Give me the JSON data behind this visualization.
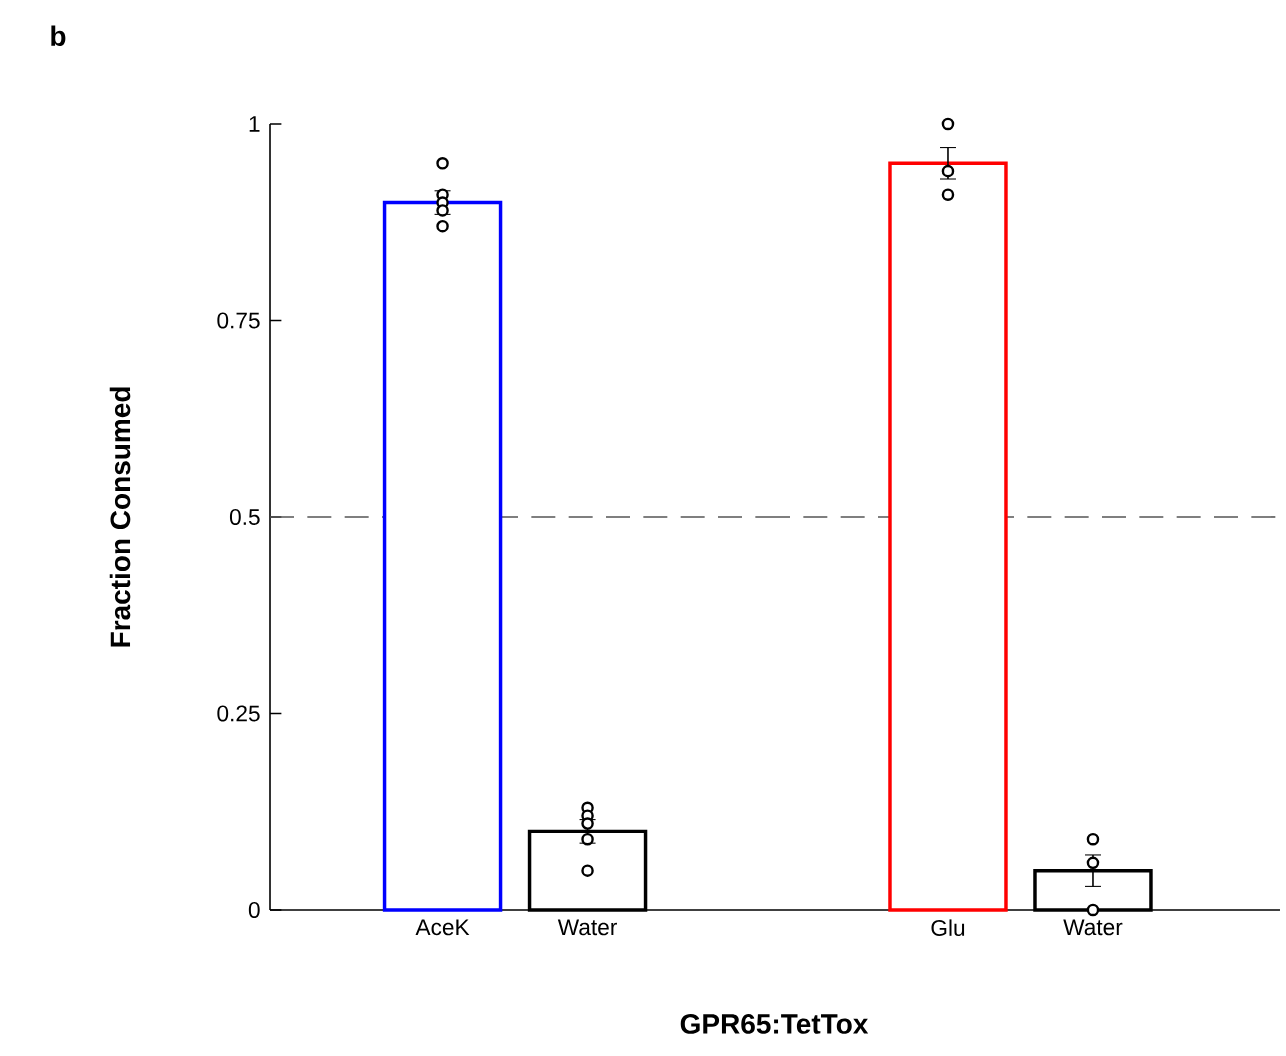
{
  "chart_data": [
    {
      "type": "bar",
      "categories": [
        "AceK",
        "Water"
      ],
      "ylim": [
        0,
        1
      ],
      "yticks": [
        0,
        0.25,
        0.5,
        0.75,
        1
      ],
      "xlabel": "GPR65:TetTox",
      "ylabel": "Fraction Consumed",
      "annotations": [
        "b"
      ],
      "ref_lines": [
        {
          "axis": "y",
          "value": 0.5,
          "line_style": "dashed",
          "color": "#555555"
        }
      ],
      "series": [
        {
          "values": [
            0.9,
            0.1
          ],
          "colors": [
            "#0000ff",
            "#000000"
          ],
          "errors": [
            0.015,
            0.015
          ]
        },
        {
          "type": "scatter",
          "marker": "circle",
          "color": "#000000",
          "x": [
            "AceK",
            "AceK",
            "AceK",
            "AceK",
            "AceK",
            "Water",
            "Water",
            "Water",
            "Water",
            "Water"
          ],
          "values": [
            0.95,
            0.91,
            0.9,
            0.89,
            0.87,
            0.13,
            0.12,
            0.11,
            0.09,
            0.05
          ]
        }
      ]
    },
    {
      "type": "bar",
      "categories": [
        "Glu",
        "Water"
      ],
      "ylim": [
        0,
        1
      ],
      "tick_labels": "x",
      "ref_lines": [
        {
          "axis": "y",
          "value": 0.5,
          "line_style": "dashed",
          "color": "#555555"
        }
      ],
      "series": [
        {
          "values": [
            0.95,
            0.05
          ],
          "colors": [
            "#ff0000",
            "#000000"
          ],
          "errors": [
            0.02,
            0.02
          ]
        },
        {
          "type": "scatter",
          "marker": "circle",
          "color": "#000000",
          "x": [
            "Glu",
            "Glu",
            "Glu",
            "Water",
            "Water",
            "Water"
          ],
          "values": [
            1,
            0.94,
            0.91,
            0.09,
            0.06,
            0
          ]
        }
      ]
    }
  ]
}
